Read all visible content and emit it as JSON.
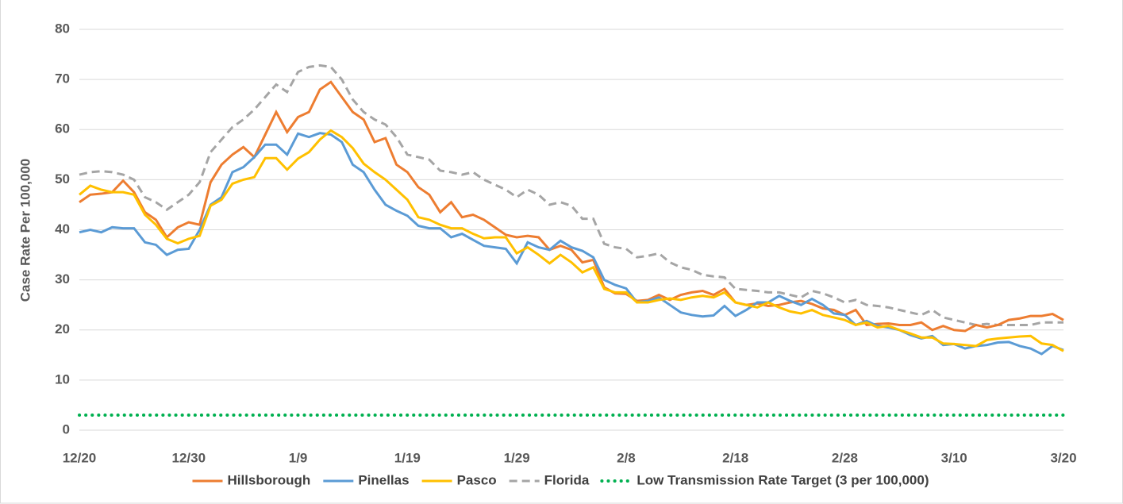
{
  "chart_data": {
    "type": "line",
    "y_label": "Case Rate Per 100,000",
    "categories": [
      "12/20",
      null,
      null,
      null,
      null,
      null,
      null,
      null,
      null,
      null,
      "12/30",
      null,
      null,
      null,
      null,
      null,
      null,
      null,
      null,
      null,
      "1/9",
      null,
      null,
      null,
      null,
      null,
      null,
      null,
      null,
      null,
      "1/19",
      null,
      null,
      null,
      null,
      null,
      null,
      null,
      null,
      null,
      "1/29",
      null,
      null,
      null,
      null,
      null,
      null,
      null,
      null,
      null,
      "2/8",
      null,
      null,
      null,
      null,
      null,
      null,
      null,
      null,
      null,
      "2/18",
      null,
      null,
      null,
      null,
      null,
      null,
      null,
      null,
      null,
      "2/28",
      null,
      null,
      null,
      null,
      null,
      null,
      null,
      null,
      null,
      "3/10",
      null,
      null,
      null,
      null,
      null,
      null,
      null,
      null,
      null,
      "3/20"
    ],
    "series": [
      {
        "name": "Hillsborough",
        "color": "#ed7d31",
        "dash": "solid",
        "values": [
          45.5,
          47,
          47.2,
          47.5,
          49.8,
          47.5,
          43.5,
          42,
          38.5,
          40.5,
          41.5,
          41,
          49.5,
          53,
          55,
          56.5,
          54.5,
          59,
          63.5,
          59.5,
          62.5,
          63.5,
          68,
          69.5,
          66.5,
          63.5,
          62,
          57.5,
          58.3,
          53,
          51.5,
          48.5,
          47,
          43.5,
          45.5,
          42.5,
          43,
          42,
          40.5,
          39,
          38.5,
          38.8,
          38.5,
          36,
          36.8,
          36,
          33.5,
          34,
          28.5,
          27.3,
          27.2,
          25.8,
          26,
          27,
          26,
          27,
          27.5,
          27.8,
          27,
          28.2,
          25.5,
          25,
          25.3,
          24.8,
          25,
          25.5,
          25.8,
          25.2,
          24.3,
          24,
          23,
          24,
          21,
          21.2,
          21.3,
          21,
          21,
          21.5,
          20,
          20.8,
          20,
          19.8,
          21,
          20.5,
          21,
          22,
          22.3,
          22.8,
          22.8,
          23.2,
          22
        ]
      },
      {
        "name": "Pinellas",
        "color": "#5b9bd5",
        "dash": "solid",
        "values": [
          39.5,
          40,
          39.5,
          40.5,
          40.3,
          40.3,
          37.5,
          37,
          35,
          36,
          36.2,
          40,
          45,
          46.5,
          51.5,
          52.5,
          54.5,
          57,
          57,
          55,
          59.2,
          58.5,
          59.3,
          59,
          57.5,
          53,
          51.5,
          48,
          45,
          43.8,
          42.8,
          40.8,
          40.3,
          40.3,
          38.5,
          39.2,
          38,
          36.8,
          36.5,
          36.2,
          33.3,
          37.5,
          36.5,
          36,
          37.8,
          36.5,
          35.8,
          34.5,
          30,
          29,
          28.3,
          25.5,
          25.8,
          26.5,
          25,
          23.5,
          23,
          22.7,
          22.9,
          24.8,
          22.8,
          24,
          25.5,
          25.5,
          26.8,
          25.8,
          25,
          26.2,
          25,
          23.3,
          23,
          21,
          21.8,
          20.8,
          20.5,
          20,
          19,
          18.3,
          18.8,
          17,
          17.2,
          16.3,
          16.8,
          17,
          17.5,
          17.6,
          16.8,
          16.3,
          15.2,
          16.8,
          16
        ]
      },
      {
        "name": "Pasco",
        "color": "#ffc000",
        "dash": "solid",
        "values": [
          47,
          48.8,
          48,
          47.5,
          47.5,
          47,
          43,
          41,
          38.2,
          37.3,
          38.2,
          38.8,
          44.8,
          46,
          49.2,
          50,
          50.5,
          54.3,
          54.3,
          52,
          54.2,
          55.5,
          58,
          59.8,
          58.5,
          56.3,
          53.2,
          51.5,
          50,
          48,
          46,
          42.5,
          42,
          41,
          40.3,
          40.3,
          39.2,
          38.3,
          38.5,
          38.5,
          35.3,
          36.5,
          35,
          33.3,
          35,
          33.5,
          31.5,
          32.5,
          28.2,
          27.5,
          27.5,
          25.5,
          25.5,
          26,
          26.3,
          26,
          26.5,
          26.8,
          26.5,
          27.5,
          25.5,
          25,
          24.5,
          25.5,
          24.5,
          23.7,
          23.3,
          24,
          23,
          22.5,
          22,
          21,
          21.5,
          20.5,
          20.8,
          20,
          19.3,
          18.5,
          18.5,
          17.3,
          17.2,
          17,
          16.8,
          18,
          18.3,
          18.5,
          18.7,
          18.8,
          17.3,
          17,
          15.8
        ]
      },
      {
        "name": "Florida",
        "color": "#a5a5a5",
        "dash": "dashed",
        "values": [
          51,
          51.5,
          51.7,
          51.5,
          51,
          50,
          46.5,
          45.5,
          44,
          45.5,
          47,
          49.5,
          55.5,
          58,
          60.5,
          62,
          64,
          66.5,
          69,
          67.5,
          71.5,
          72.5,
          72.8,
          72.5,
          70,
          66,
          63.5,
          62,
          61,
          58.5,
          55,
          54.5,
          54,
          51.8,
          51.5,
          51,
          51.5,
          50,
          49,
          48,
          46.5,
          48,
          47,
          45,
          45.5,
          44.8,
          42.2,
          42.2,
          37.2,
          36.5,
          36.2,
          34.5,
          34.8,
          35.3,
          33.5,
          32.5,
          32,
          31,
          30.7,
          30.5,
          28.2,
          28,
          27.8,
          27.5,
          27.5,
          27,
          26.5,
          27.8,
          27.3,
          26.5,
          25.5,
          26,
          25,
          24.8,
          24.5,
          24,
          23.5,
          23,
          24,
          22.5,
          22,
          21.5,
          21,
          21.2,
          21,
          21,
          21,
          21,
          21.5,
          21.5,
          21.5
        ]
      },
      {
        "name": "Low Transmission Rate Target (3 per 100,000)",
        "color": "#00b050",
        "dash": "dotted",
        "values": [
          3,
          3,
          3,
          3,
          3,
          3,
          3,
          3,
          3,
          3,
          3,
          3,
          3,
          3,
          3,
          3,
          3,
          3,
          3,
          3,
          3,
          3,
          3,
          3,
          3,
          3,
          3,
          3,
          3,
          3,
          3,
          3,
          3,
          3,
          3,
          3,
          3,
          3,
          3,
          3,
          3,
          3,
          3,
          3,
          3,
          3,
          3,
          3,
          3,
          3,
          3,
          3,
          3,
          3,
          3,
          3,
          3,
          3,
          3,
          3,
          3,
          3,
          3,
          3,
          3,
          3,
          3,
          3,
          3,
          3,
          3,
          3,
          3,
          3,
          3,
          3,
          3,
          3,
          3,
          3,
          3,
          3,
          3,
          3,
          3,
          3,
          3,
          3,
          3,
          3,
          3
        ]
      }
    ],
    "ylim": [
      0,
      80
    ],
    "yticks": [
      0,
      10,
      20,
      30,
      40,
      50,
      60,
      70,
      80
    ],
    "grid": true,
    "legend": "bottom"
  }
}
